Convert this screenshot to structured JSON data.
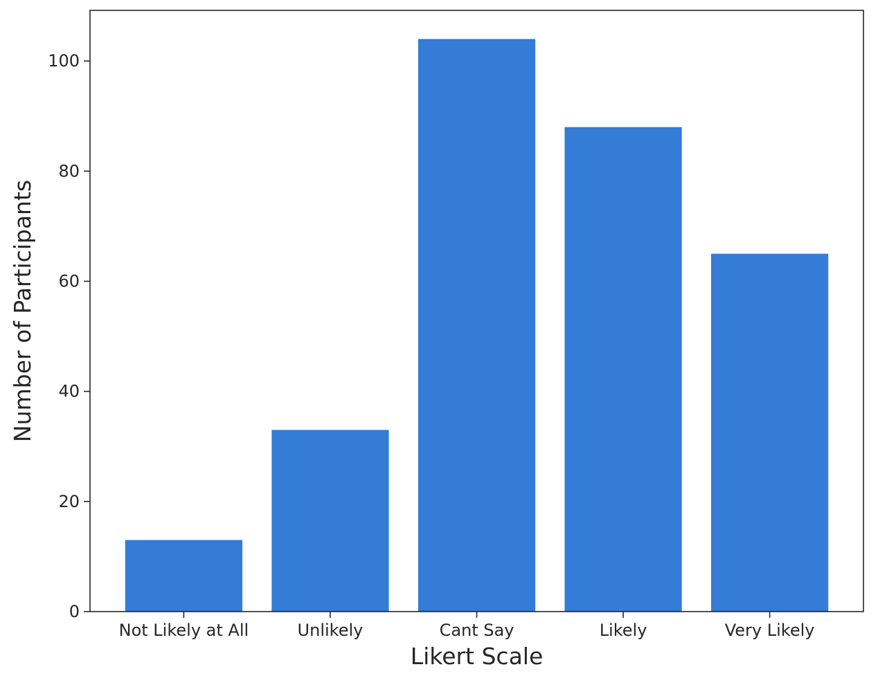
{
  "chart_data": {
    "type": "bar",
    "title": "",
    "categories": [
      "Not Likely at All",
      "Unlikely",
      "Cant Say",
      "Likely",
      "Very Likely"
    ],
    "values": [
      13,
      33,
      104,
      88,
      65
    ],
    "xlabel": "Likert Scale",
    "ylabel": "Number of Participants",
    "ylim": [
      0,
      109.2
    ],
    "yticks": [
      0,
      20,
      40,
      60,
      80,
      100
    ],
    "bar_color": "#347cd6",
    "grid": false,
    "legend": "none"
  }
}
